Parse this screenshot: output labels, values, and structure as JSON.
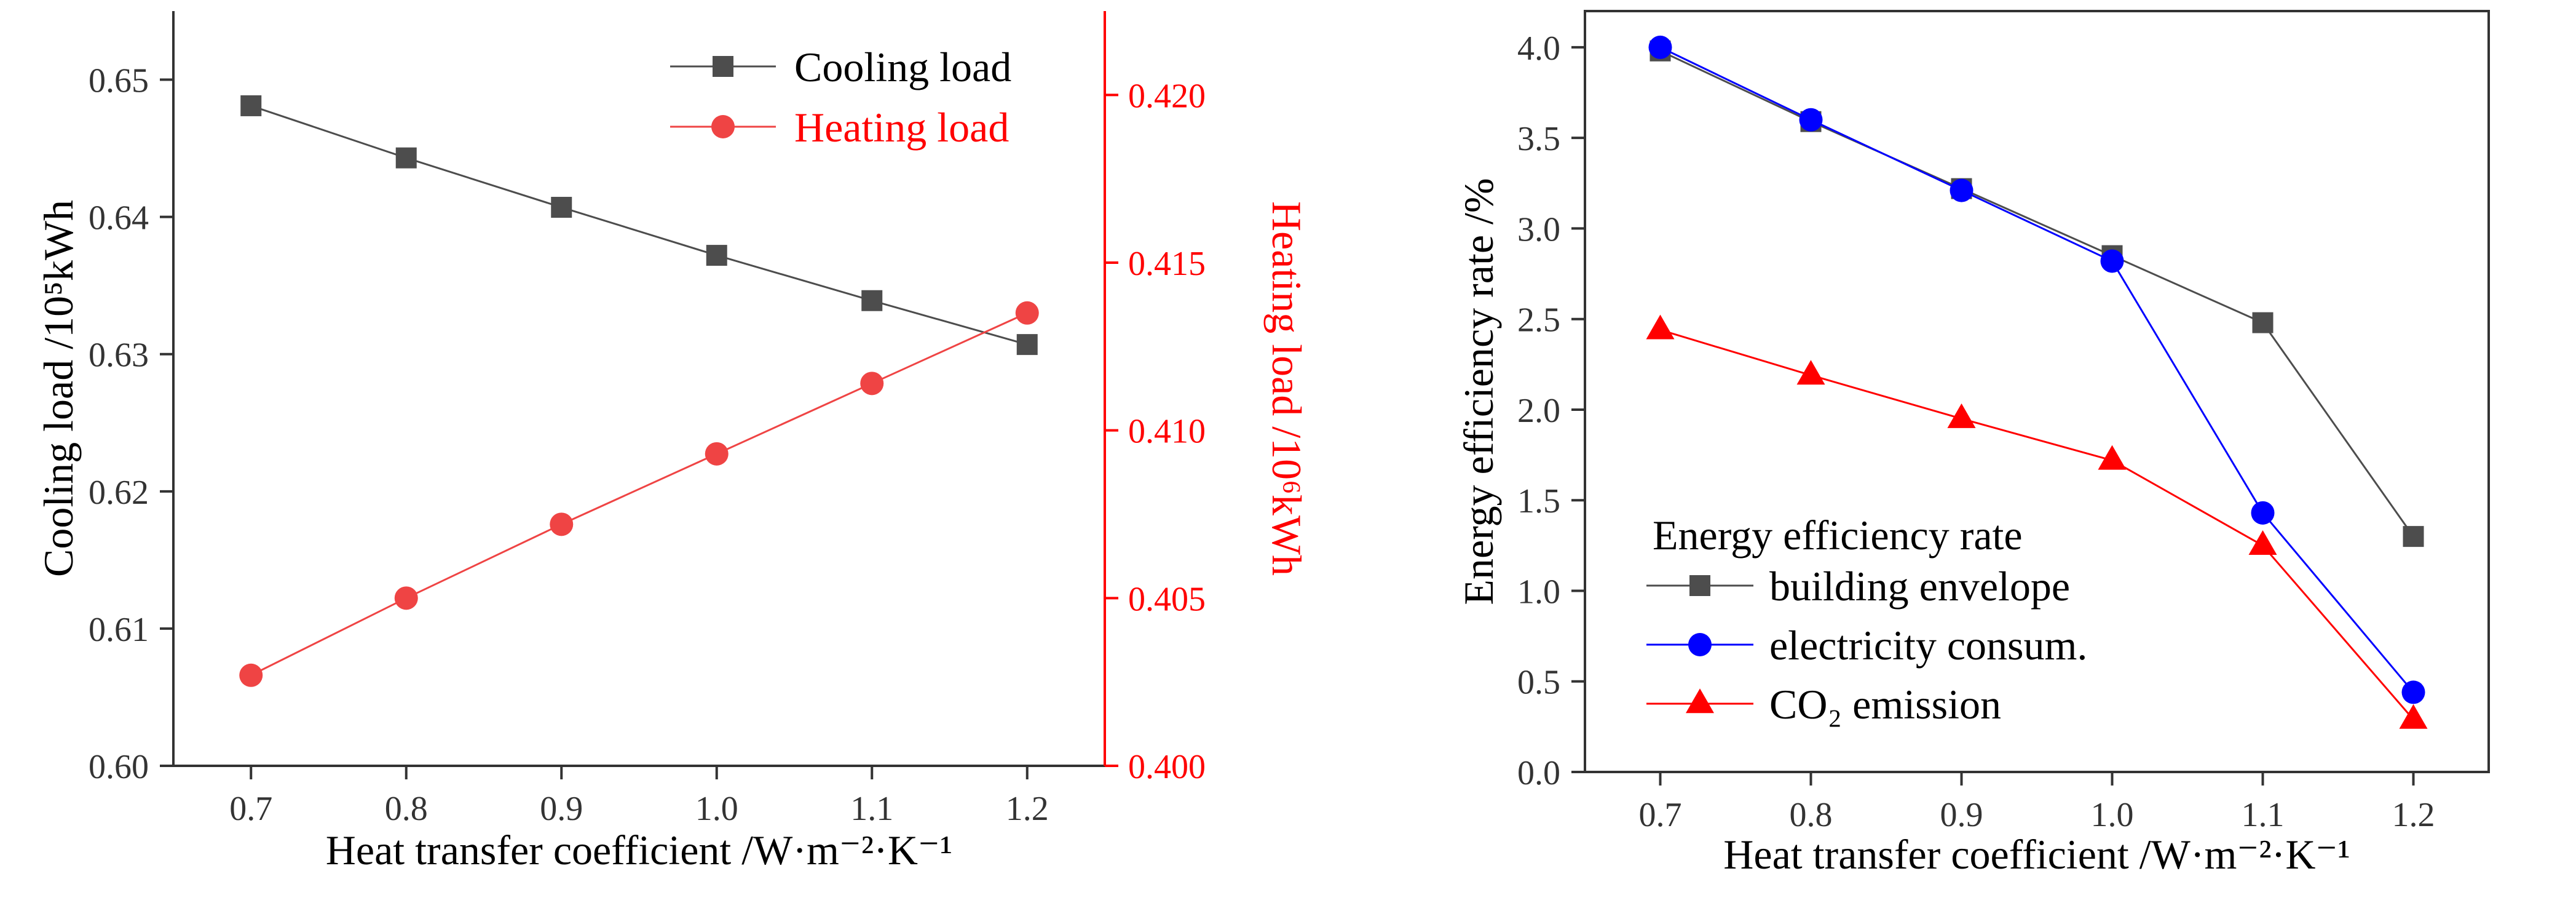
{
  "chart_data": [
    {
      "type": "line",
      "x": [
        0.7,
        0.8,
        0.9,
        1.0,
        1.1,
        1.2
      ],
      "xlim": [
        0.65,
        1.25
      ],
      "xticks": [
        "0.7",
        "0.8",
        "0.9",
        "1.0",
        "1.1",
        "1.2"
      ],
      "xlabel": "Heat transfer coefficient /W·m⁻²·K⁻¹",
      "ylabel_left": "Cooling load /10⁵kWh",
      "ylim_left": [
        0.6,
        0.655
      ],
      "yticks_left": [
        "0.60",
        "0.61",
        "0.62",
        "0.63",
        "0.64",
        "0.65"
      ],
      "ylabel_right": "Heating load /10⁶kWh",
      "ylim_right": [
        0.4,
        0.4225
      ],
      "yticks_right": [
        "0.400",
        "0.405",
        "0.410",
        "0.415",
        "0.420"
      ],
      "legend_position": "top-right",
      "grid": false,
      "series": [
        {
          "name": "Cooling load",
          "axis": "left",
          "marker": "square",
          "color": "#4d4d4d",
          "values": [
            0.6481,
            0.6443,
            0.6407,
            0.6372,
            0.6339,
            0.6307
          ]
        },
        {
          "name": "Heating load",
          "axis": "right",
          "marker": "circle",
          "color": "#ef4444",
          "values": [
            0.4027,
            0.405,
            0.4072,
            0.4093,
            0.4114,
            0.4135
          ]
        }
      ],
      "right_axis_color": "#ff0000"
    },
    {
      "type": "line",
      "x": [
        0.7,
        0.8,
        0.9,
        1.0,
        1.1,
        1.2
      ],
      "xlim": [
        0.65,
        1.25
      ],
      "xticks": [
        "0.7",
        "0.8",
        "0.9",
        "1.0",
        "1.1",
        "1.2"
      ],
      "xlabel": "Heat transfer coefficient /W·m⁻²·K⁻¹",
      "ylabel": "Energy efficiency rate /%",
      "ylim": [
        0.0,
        4.2
      ],
      "yticks": [
        "0.0",
        "0.5",
        "1.0",
        "1.5",
        "2.0",
        "2.5",
        "3.0",
        "3.5",
        "4.0"
      ],
      "legend_title": "Energy efficiency rate",
      "legend_position": "bottom-left",
      "grid": false,
      "series": [
        {
          "name": "building envelope",
          "marker": "square",
          "color": "#4d4d4d",
          "values": [
            3.98,
            3.59,
            3.22,
            2.85,
            2.48,
            1.3
          ]
        },
        {
          "name": "electricity consum.",
          "marker": "circle",
          "color": "#0000ff",
          "values": [
            4.0,
            3.6,
            3.21,
            2.82,
            1.43,
            0.44
          ]
        },
        {
          "name": "CO₂ emission",
          "marker": "triangle",
          "color": "#ff0000",
          "values": [
            2.44,
            2.19,
            1.95,
            1.72,
            1.25,
            0.29
          ]
        }
      ]
    }
  ]
}
